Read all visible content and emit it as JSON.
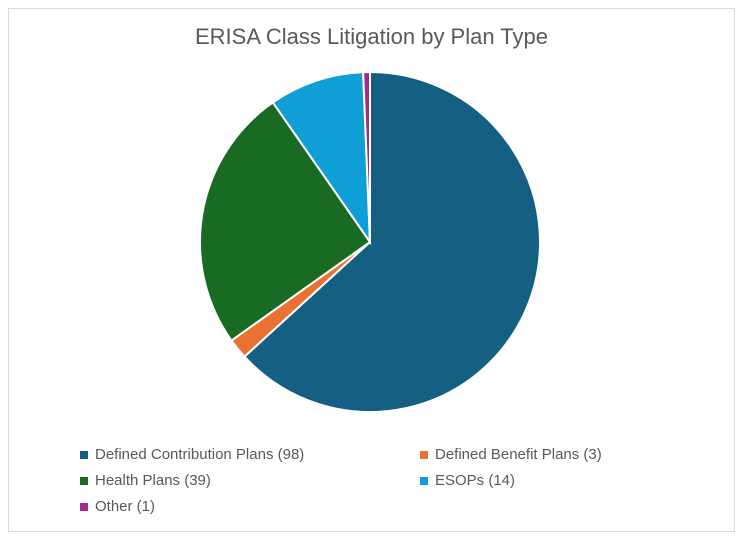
{
  "chart_data": {
    "type": "pie",
    "title": "ERISA Class Litigation by Plan Type",
    "start_angle": "top, clockwise",
    "legend_position": "bottom",
    "slices": [
      {
        "label": "Defined Contribution Plans (98)",
        "value": 98,
        "color": "#156082"
      },
      {
        "label": "Defined Benefit Plans (3)",
        "value": 3,
        "color": "#E97132"
      },
      {
        "label": "Health Plans (39)",
        "value": 39,
        "color": "#196B24"
      },
      {
        "label": "ESOPs (14)",
        "value": 14,
        "color": "#0F9ED5"
      },
      {
        "label": "Other (1)",
        "value": 1,
        "color": "#A02B93"
      }
    ]
  }
}
